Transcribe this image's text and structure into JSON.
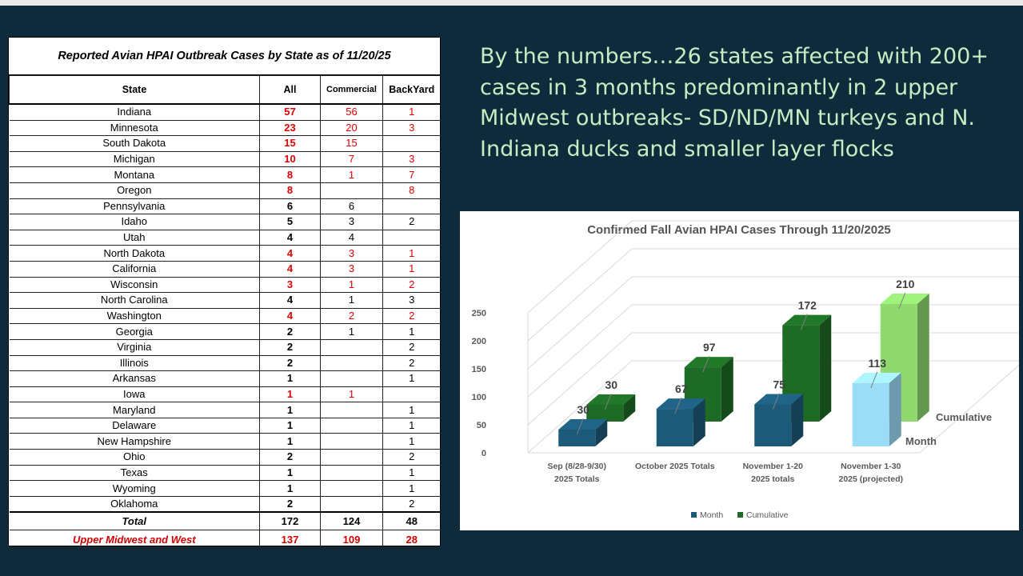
{
  "table": {
    "title": "Reported Avian HPAI  Outbreak Cases by State as of 11/20/25",
    "headers": [
      "State",
      "All",
      "Commercial",
      "BackYard"
    ],
    "rows": [
      {
        "state": "Indiana",
        "all": "57",
        "commercial": "56",
        "backyard": "1",
        "red": true
      },
      {
        "state": "Minnesota",
        "all": "23",
        "commercial": "20",
        "backyard": "3",
        "red": true
      },
      {
        "state": "South Dakota",
        "all": "15",
        "commercial": "15",
        "backyard": "",
        "red": true
      },
      {
        "state": "Michigan",
        "all": "10",
        "commercial": "7",
        "backyard": "3",
        "red": true
      },
      {
        "state": "Montana",
        "all": "8",
        "commercial": "1",
        "backyard": "7",
        "red": true
      },
      {
        "state": "Oregon",
        "all": "8",
        "commercial": "",
        "backyard": "8",
        "red": true
      },
      {
        "state": "Pennsylvania",
        "all": "6",
        "commercial": "6",
        "backyard": "",
        "red": false
      },
      {
        "state": "Idaho",
        "all": "5",
        "commercial": "3",
        "backyard": "2",
        "red": false
      },
      {
        "state": "Utah",
        "all": "4",
        "commercial": "4",
        "backyard": "",
        "red": false
      },
      {
        "state": "North Dakota",
        "all": "4",
        "commercial": "3",
        "backyard": "1",
        "red": true
      },
      {
        "state": "California",
        "all": "4",
        "commercial": "3",
        "backyard": "1",
        "red": true
      },
      {
        "state": "Wisconsin",
        "all": "3",
        "commercial": "1",
        "backyard": "2",
        "red": true
      },
      {
        "state": "North Carolina",
        "all": "4",
        "commercial": "1",
        "backyard": "3",
        "red": false
      },
      {
        "state": "Washington",
        "all": "4",
        "commercial": "2",
        "backyard": "2",
        "red": true
      },
      {
        "state": "Georgia",
        "all": "2",
        "commercial": "1",
        "backyard": "1",
        "red": false
      },
      {
        "state": "Virginia",
        "all": "2",
        "commercial": "",
        "backyard": "2",
        "red": false
      },
      {
        "state": "Illinois",
        "all": "2",
        "commercial": "",
        "backyard": "2",
        "red": false
      },
      {
        "state": "Arkansas",
        "all": "1",
        "commercial": "",
        "backyard": "1",
        "red": false
      },
      {
        "state": "Iowa",
        "all": "1",
        "commercial": "1",
        "backyard": "",
        "red": true
      },
      {
        "state": "Maryland",
        "all": "1",
        "commercial": "",
        "backyard": "1",
        "red": false
      },
      {
        "state": "Delaware",
        "all": "1",
        "commercial": "",
        "backyard": "1",
        "red": false
      },
      {
        "state": "New Hampshire",
        "all": "1",
        "commercial": "",
        "backyard": "1",
        "red": false
      },
      {
        "state": "Ohio",
        "all": "2",
        "commercial": "",
        "backyard": "2",
        "red": false
      },
      {
        "state": "Texas",
        "all": "1",
        "commercial": "",
        "backyard": "1",
        "red": false
      },
      {
        "state": "Wyoming",
        "all": "1",
        "commercial": "",
        "backyard": "1",
        "red": false
      },
      {
        "state": "Oklahoma",
        "all": "2",
        "commercial": "",
        "backyard": "2",
        "red": false
      }
    ],
    "total": {
      "label": "Total",
      "all": "172",
      "commercial": "124",
      "backyard": "48"
    },
    "upper": {
      "label": "Upper Midwest and West",
      "all": "137",
      "commercial": "109",
      "backyard": "28"
    }
  },
  "headline": "By the numbers…26 states affected with 200+ cases in 3 months predominantly in 2 upper Midwest outbreaks- SD/ND/MN turkeys and N. Indiana ducks and smaller layer flocks",
  "colors": {
    "background": "#0e2b3b",
    "headline": "#c7ebc3",
    "red": "#e00000",
    "month": "#1d5a7a",
    "cumulative": "#1e6b25",
    "projected_month": "#9bdcf7",
    "projected_cumulative": "#8fd96f"
  },
  "chart_data": {
    "type": "bar",
    "style": "3d-clustered",
    "title": "Confirmed Fall Avian HPAI Cases Through 11/20/2025",
    "categories": [
      [
        "Sep (8/28-9/30)",
        "2025 Totals"
      ],
      [
        "October 2025 Totals"
      ],
      [
        "November 1-20",
        "2025 totals"
      ],
      [
        "November 1-30",
        "2025 (projected)"
      ]
    ],
    "series": [
      {
        "name": "Month",
        "values": [
          30,
          67,
          75,
          113
        ]
      },
      {
        "name": "Cumulative",
        "values": [
          30,
          97,
          172,
          210
        ]
      }
    ],
    "y_ticks": [
      0,
      50,
      100,
      150,
      200,
      250
    ],
    "ylim": [
      0,
      250
    ],
    "depth_axis_labels": [
      "Cumulative",
      "Month"
    ],
    "legend": [
      "Month",
      "Cumulative"
    ],
    "legend_position": "bottom"
  }
}
